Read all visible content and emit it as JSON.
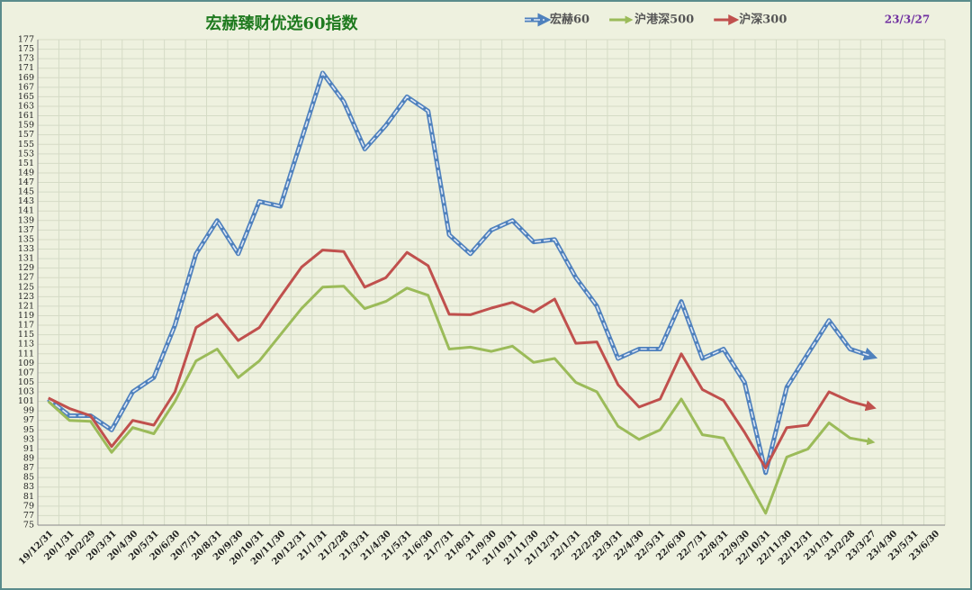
{
  "chart_data": {
    "type": "line",
    "title": "宏赫臻财优选60指数",
    "date_label": "23/3/27",
    "categories": [
      "19/12/31",
      "20/1/31",
      "20/2/29",
      "20/3/31",
      "20/4/30",
      "20/5/31",
      "20/6/30",
      "20/7/31",
      "20/8/31",
      "20/9/30",
      "20/10/31",
      "20/11/30",
      "20/12/31",
      "21/1/31",
      "21/2/28",
      "21/3/31",
      "21/4/30",
      "21/5/31",
      "21/6/30",
      "21/7/31",
      "21/8/31",
      "21/9/30",
      "21/10/31",
      "21/11/30",
      "21/12/31",
      "22/1/31",
      "22/2/28",
      "22/3/31",
      "22/4/30",
      "22/5/31",
      "22/6/30",
      "22/7/31",
      "22/8/31",
      "22/9/30",
      "22/10/31",
      "22/11/30",
      "22/12/31",
      "23/1/31",
      "23/2/28",
      "23/3/27",
      "23/4/30",
      "23/5/31",
      "23/6/30"
    ],
    "series": [
      {
        "name": "宏赫60",
        "color": "#4f81bd",
        "values": [
          101.5,
          98,
          98,
          95,
          103,
          106,
          117,
          132,
          139,
          132,
          143,
          142,
          156,
          170,
          164,
          154,
          159,
          165,
          162,
          136,
          132,
          137,
          139,
          134.5,
          135,
          127,
          121,
          110,
          112,
          112,
          122,
          110,
          112,
          105,
          86,
          104,
          111,
          118,
          112,
          110.5,
          null,
          null,
          null
        ]
      },
      {
        "name": "沪港深500",
        "color": "#9bbb59",
        "values": [
          101,
          97,
          96.8,
          90.3,
          95.5,
          94.2,
          101,
          109.5,
          112,
          106,
          109.5,
          115,
          120.5,
          125,
          125.2,
          120.5,
          122,
          124.8,
          123.3,
          112,
          112.4,
          111.5,
          112.6,
          109.2,
          110,
          105,
          103,
          95.8,
          93,
          95,
          101.5,
          94,
          93.3,
          85.5,
          77.5,
          89.3,
          91,
          96.5,
          93.3,
          92.5,
          null,
          null,
          null
        ]
      },
      {
        "name": "沪深300",
        "color": "#c0504d",
        "values": [
          101.7,
          99.5,
          98,
          91.5,
          97,
          96,
          103,
          116.5,
          119.3,
          113.8,
          116.5,
          123,
          129.2,
          132.8,
          132.5,
          125,
          127,
          132.3,
          129.5,
          119.3,
          119.2,
          120.6,
          121.8,
          119.8,
          122.5,
          113.2,
          113.5,
          104.5,
          99.8,
          101.5,
          111,
          103.5,
          101.2,
          94.5,
          87,
          95.5,
          96,
          103,
          101,
          99.8,
          null,
          null,
          null
        ]
      }
    ],
    "ylim": [
      75,
      177
    ],
    "yticks": [
      75,
      77,
      79,
      81,
      83,
      85,
      87,
      89,
      91,
      93,
      95,
      97,
      99,
      101,
      103,
      105,
      107,
      109,
      111,
      113,
      115,
      117,
      119,
      121,
      123,
      125,
      127,
      129,
      131,
      133,
      135,
      137,
      139,
      141,
      143,
      145,
      147,
      149,
      151,
      153,
      155,
      157,
      159,
      161,
      163,
      165,
      167,
      169,
      171,
      173,
      175,
      177
    ],
    "grid": true
  }
}
